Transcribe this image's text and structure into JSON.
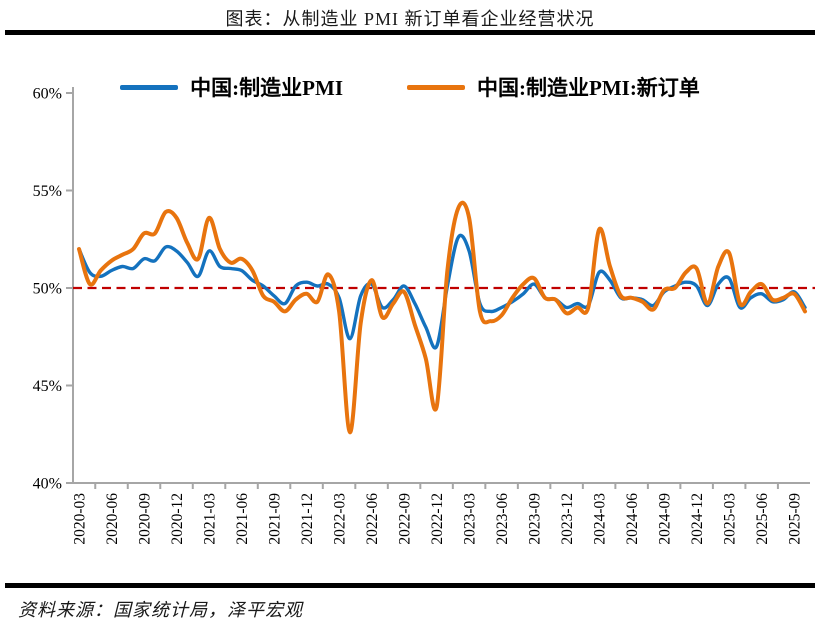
{
  "title": "图表：从制造业 PMI 新订单看企业经营状况",
  "source": "资料来源：国家统计局，泽平宏观",
  "chart_data": {
    "type": "line",
    "title": "图表：从制造业 PMI 新订单看企业经营状况",
    "xlabel": "",
    "ylabel": "",
    "ylim": [
      40,
      60
    ],
    "ytick_labels": [
      "40%",
      "45%",
      "50%",
      "55%",
      "60%"
    ],
    "grid": false,
    "legend_position": "top",
    "axis_color": "#a6a6a6",
    "refline": {
      "value": 50,
      "color": "#c00000",
      "style": "dashed"
    },
    "x": [
      "2020-03",
      "2020-04",
      "2020-05",
      "2020-06",
      "2020-07",
      "2020-08",
      "2020-09",
      "2020-10",
      "2020-11",
      "2020-12",
      "2021-01",
      "2021-02",
      "2021-03",
      "2021-04",
      "2021-05",
      "2021-06",
      "2021-07",
      "2021-08",
      "2021-09",
      "2021-10",
      "2021-11",
      "2021-12",
      "2022-01",
      "2022-02",
      "2022-03",
      "2022-04",
      "2022-05",
      "2022-06",
      "2022-07",
      "2022-08",
      "2022-09",
      "2022-10",
      "2022-11",
      "2022-12",
      "2023-01",
      "2023-02",
      "2023-03",
      "2023-04",
      "2023-05",
      "2023-06",
      "2023-07",
      "2023-08",
      "2023-09",
      "2023-10",
      "2023-11",
      "2023-12",
      "2024-01",
      "2024-02",
      "2024-03",
      "2024-04",
      "2024-05",
      "2024-06",
      "2024-07",
      "2024-08",
      "2024-09",
      "2024-10",
      "2024-11",
      "2024-12",
      "2025-01",
      "2025-02",
      "2025-03",
      "2025-04",
      "2025-05",
      "2025-06",
      "2025-07",
      "2025-08",
      "2025-09",
      "2025-10"
    ],
    "x_tick_labels": [
      "2020-03",
      "2020-06",
      "2020-09",
      "2020-12",
      "2021-03",
      "2021-06",
      "2021-09",
      "2021-12",
      "2022-03",
      "2022-06",
      "2022-09",
      "2022-12",
      "2023-03",
      "2023-06",
      "2023-09",
      "2023-12",
      "2024-03",
      "2024-06",
      "2024-09",
      "2024-12",
      "2025-03",
      "2025-06",
      "2025-09"
    ],
    "series": [
      {
        "name": "中国:制造业PMI",
        "color": "#1472be",
        "values": [
          52.0,
          50.8,
          50.6,
          50.9,
          51.1,
          51.0,
          51.5,
          51.4,
          52.1,
          51.9,
          51.3,
          50.6,
          51.9,
          51.1,
          51.0,
          50.9,
          50.4,
          50.1,
          49.6,
          49.2,
          50.1,
          50.3,
          50.1,
          50.2,
          49.5,
          47.4,
          49.6,
          50.2,
          49.0,
          49.4,
          50.1,
          49.2,
          48.0,
          47.0,
          50.1,
          52.6,
          51.9,
          49.2,
          48.8,
          49.0,
          49.3,
          49.7,
          50.2,
          49.5,
          49.4,
          49.0,
          49.2,
          49.1,
          50.8,
          50.4,
          49.5,
          49.5,
          49.4,
          49.1,
          49.8,
          50.1,
          50.3,
          50.1,
          49.1,
          50.2,
          50.5,
          49.0,
          49.5,
          49.7,
          49.3,
          49.4,
          49.8,
          49.0
        ]
      },
      {
        "name": "中国:制造业PMI:新订单",
        "color": "#e8740e",
        "values": [
          52.0,
          50.2,
          50.9,
          51.4,
          51.7,
          52.0,
          52.8,
          52.8,
          53.9,
          53.6,
          52.3,
          51.5,
          53.6,
          52.0,
          51.3,
          51.5,
          50.9,
          49.6,
          49.3,
          48.8,
          49.4,
          49.7,
          49.3,
          50.7,
          48.8,
          42.6,
          48.2,
          50.4,
          48.5,
          49.2,
          49.8,
          48.1,
          46.4,
          43.9,
          50.9,
          54.1,
          53.6,
          48.8,
          48.3,
          48.6,
          49.5,
          50.2,
          50.5,
          49.5,
          49.4,
          48.7,
          49.0,
          49.0,
          53.0,
          51.1,
          49.6,
          49.5,
          49.3,
          48.9,
          49.9,
          50.0,
          50.8,
          51.0,
          49.2,
          51.1,
          51.8,
          49.2,
          49.8,
          50.2,
          49.4,
          49.5,
          49.7,
          48.8
        ]
      }
    ]
  }
}
